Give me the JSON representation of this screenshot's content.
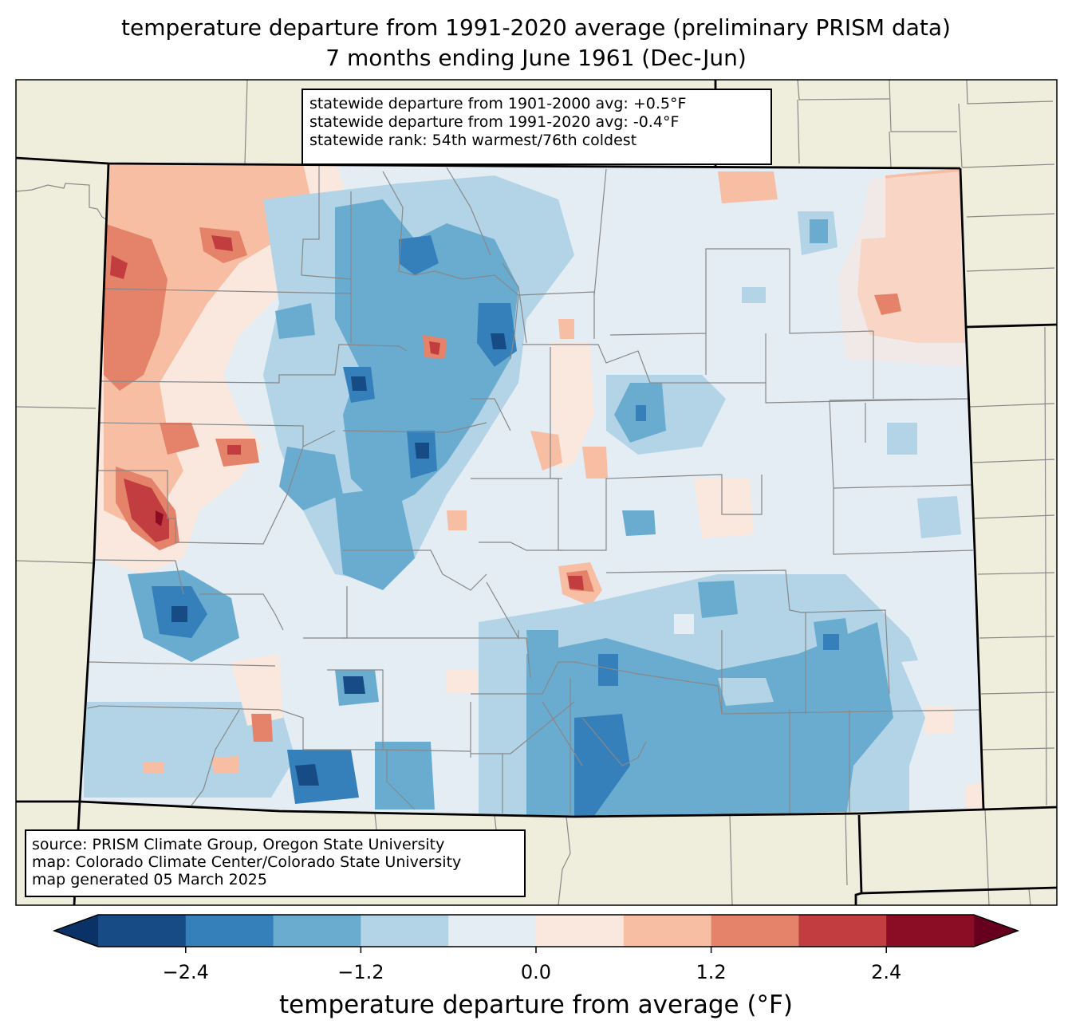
{
  "title": {
    "line1": "temperature departure from 1991-2020 average (preliminary PRISM data)",
    "line2": "7 months ending June 1961 (Dec-Jun)"
  },
  "stats_box": {
    "line1": "statewide departure from 1901-2000 avg: +0.5°F",
    "line2": "statewide departure from 1991-2020 avg: -0.4°F",
    "line3": "statewide rank: 54th warmest/76th coldest"
  },
  "source_box": {
    "line1": "source: PRISM Climate Group, Oregon State University",
    "line2": "map: Colorado Climate Center/Colorado State University",
    "line3": "map generated 05 March 2025"
  },
  "colors": {
    "land_background": "#efeedc",
    "state_border": "#000000",
    "county_line": "#888888"
  },
  "chart_data": {
    "type": "heatmap",
    "region": "Colorado",
    "variable": "temperature departure from 1991-2020 average",
    "units": "°F",
    "colorbar": {
      "label": "temperature departure from average (°F)",
      "extend": "both",
      "boundaries": [
        -3.0,
        -2.4,
        -1.8,
        -1.2,
        -0.6,
        0.0,
        0.6,
        1.2,
        1.8,
        2.4,
        3.0
      ],
      "ticks": [
        -2.4,
        -1.2,
        0.0,
        1.2,
        2.4
      ],
      "tick_labels": [
        "−2.4",
        "−1.2",
        "0.0",
        "1.2",
        "2.4"
      ],
      "under_color": "#0b3266",
      "over_color": "#67001f",
      "bin_colors": [
        "#174b86",
        "#3580ba",
        "#6aacd0",
        "#b2d4e6",
        "#e4ecf4",
        "#fae8df",
        "#f7bea4",
        "#e4826a",
        "#c23d3f",
        "#8a0c25"
      ]
    },
    "statewide_departure_1901_2000": 0.5,
    "statewide_departure_1991_2020": -0.4,
    "rank_warmest": 54,
    "rank_coldest": 76,
    "spatial_pattern": [
      {
        "area": "northwest",
        "departure_range": [
          0.6,
          1.8
        ]
      },
      {
        "area": "west-central (Mesa area)",
        "departure_range": [
          1.8,
          3.0
        ]
      },
      {
        "area": "southwest",
        "departure_range": [
          -2.4,
          -0.6
        ]
      },
      {
        "area": "central mountains",
        "departure_range": [
          -3.0,
          -0.6
        ]
      },
      {
        "area": "northeast corner",
        "departure_range": [
          0.6,
          1.8
        ]
      },
      {
        "area": "eastern plains",
        "departure_range": [
          -0.6,
          0.0
        ]
      },
      {
        "area": "south-central / San Luis Valley",
        "departure_range": [
          -2.4,
          -0.6
        ]
      },
      {
        "area": "southeast",
        "departure_range": [
          -1.8,
          0.0
        ]
      }
    ]
  }
}
